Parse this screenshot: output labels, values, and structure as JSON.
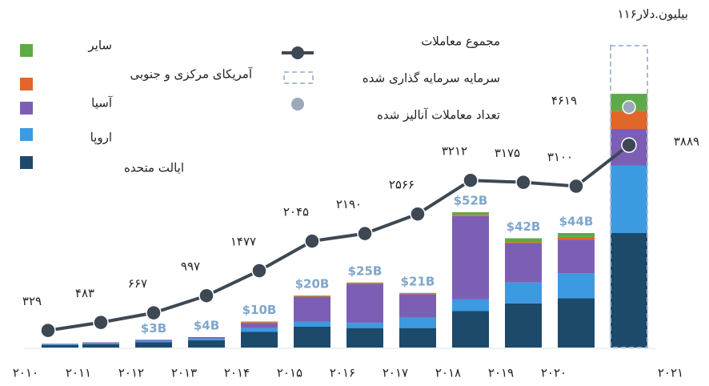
{
  "chart_data": {
    "type": "bar",
    "categories": [
      "۲۰۱۰",
      "۲۰۱۱",
      "۲۰۱۲",
      "۲۰۱۳",
      "۲۰۱۴",
      "۲۰۱۵",
      "۲۰۱۶",
      "۲۰۱۷",
      "۲۰۱۸",
      "۲۰۱۹",
      "۲۰۲۰",
      "۲۰۲۱"
    ],
    "ylim": [
      0,
      120
    ],
    "y2lim": [
      0,
      6000
    ],
    "series": [
      {
        "name": "ایالت متحده",
        "color": "#1d4a6b",
        "values": [
          1,
          1.3,
          2,
          2.8,
          6,
          8,
          7.5,
          7.5,
          14,
          17,
          19,
          44
        ]
      },
      {
        "name": "اروپا",
        "color": "#3c9ae0",
        "values": [
          0.3,
          0.4,
          0.6,
          0.7,
          1.5,
          2,
          2,
          4,
          4.5,
          8,
          9.5,
          26
        ]
      },
      {
        "name": "آسیا",
        "color": "#7c5fb4",
        "values": [
          0.2,
          0.3,
          0.4,
          0.5,
          2,
          9.5,
          15,
          9,
          32,
          15,
          13,
          14
        ]
      },
      {
        "name": "آمریکای مرکزی و جنوبی",
        "color": "#e0662a",
        "values": [
          0,
          0,
          0,
          0,
          0.3,
          0.3,
          0.3,
          0.3,
          0.5,
          0.5,
          1,
          7
        ]
      },
      {
        "name": "سایر",
        "color": "#5daa48",
        "values": [
          0,
          0,
          0,
          0,
          0.2,
          0.2,
          0.2,
          0.2,
          1,
          1.5,
          1.5,
          6.5
        ]
      }
    ],
    "totals": {
      "values": [
        null,
        null,
        3,
        4,
        10,
        20,
        25,
        21,
        52,
        42,
        44,
        null
      ],
      "value_labels": [
        null,
        null,
        "$3B",
        "$4B",
        "$10B",
        "$20B",
        "$25B",
        "$21B",
        "$52B",
        "$42B",
        "$44B",
        null
      ]
    },
    "committed": {
      "name": "سرمایه سرمایه گذاری شده",
      "color": "#a9bdd6",
      "values": [
        null,
        null,
        null,
        null,
        null,
        null,
        null,
        null,
        null,
        null,
        null,
        116
      ],
      "value_labels": [
        null,
        null,
        null,
        null,
        null,
        null,
        null,
        null,
        null,
        null,
        null,
        "۱۱۶بیلیون.دلار"
      ]
    },
    "deals": {
      "name": "مجموع معاملات",
      "color": "#3d4852",
      "axis": "y2",
      "values": [
        329,
        483,
        667,
        997,
        1477,
        2045,
        2190,
        2566,
        3212,
        3175,
        3100,
        3889
      ],
      "value_labels": [
        "۳۲۹",
        "۴۸۳",
        "۶۶۷",
        "۹۹۷",
        "۱۴۷۷",
        "۲۰۴۵",
        "۲۱۹۰",
        "۲۵۶۶",
        "۳۲۱۲",
        "۳۱۷۵",
        "۳۱۰۰",
        "۳۸۸۹"
      ]
    },
    "analyzed": {
      "name": "تعداد معاملات آنالیز شده",
      "color": "#9aa8b8",
      "axis": "y2",
      "values": [
        null,
        null,
        null,
        null,
        null,
        null,
        null,
        null,
        null,
        null,
        null,
        4619
      ],
      "value_labels": [
        null,
        null,
        null,
        null,
        null,
        null,
        null,
        null,
        null,
        null,
        null,
        "۴۶۱۹"
      ]
    }
  }
}
